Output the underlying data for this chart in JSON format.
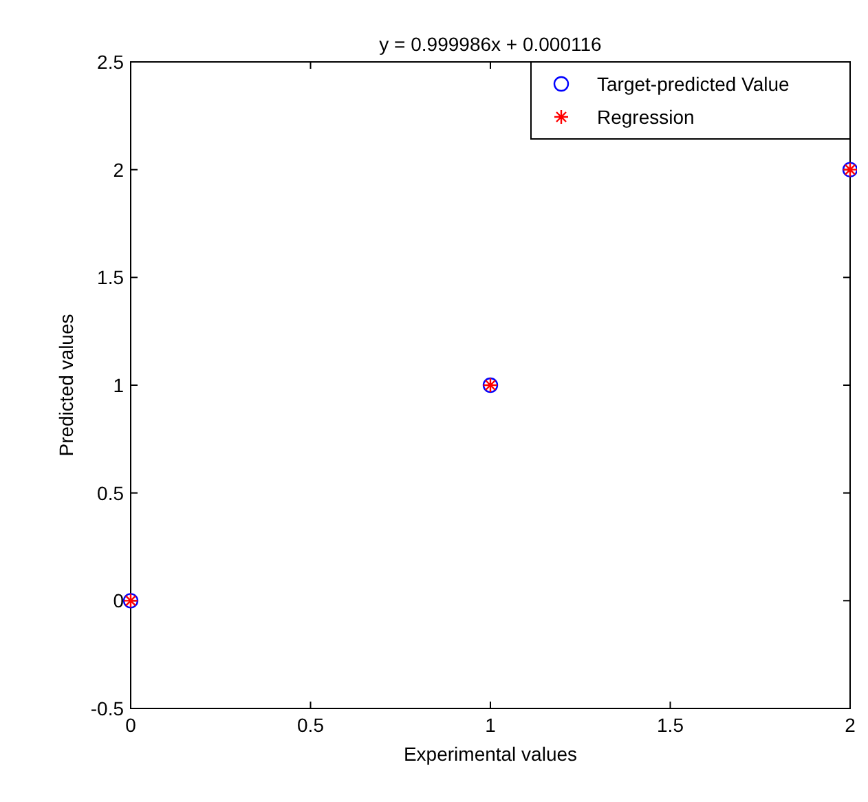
{
  "chart_data": {
    "type": "scatter",
    "title": "y = 0.999986x + 0.000116",
    "xlabel": "Experimental values",
    "ylabel": "Predicted values",
    "x": [
      0,
      1,
      2
    ],
    "series": [
      {
        "name": "Target-predicted Value",
        "color": "#0000ff",
        "marker": "circle",
        "values": [
          0,
          1,
          2
        ]
      },
      {
        "name": "Regression",
        "color": "#ff0000",
        "marker": "cross",
        "values": [
          0,
          1,
          2
        ]
      }
    ],
    "xlim": [
      0,
      2
    ],
    "xticks": [
      0,
      0.5,
      1,
      1.5,
      2
    ],
    "ylim": [
      -0.5,
      2.5
    ],
    "yticks": [
      -0.5,
      0,
      0.5,
      1,
      1.5,
      2,
      2.5
    ],
    "grid": false,
    "legend": "top right"
  }
}
